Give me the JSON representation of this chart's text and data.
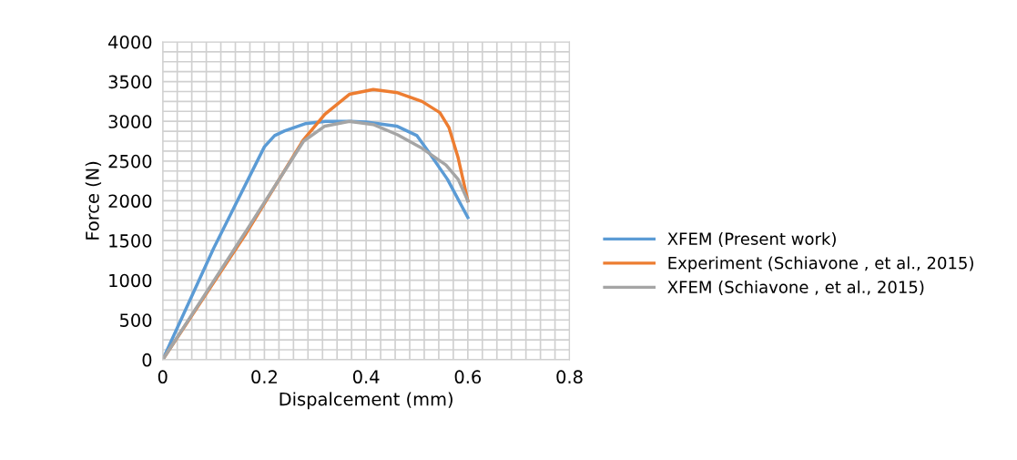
{
  "chart_data": {
    "type": "line",
    "xlabel": "Dispalcement (mm)",
    "ylabel": "Force (N)",
    "xlim": [
      0,
      0.8
    ],
    "xticks": [
      0,
      0.2,
      0.4,
      0.6,
      0.8
    ],
    "ylim": [
      0,
      4000
    ],
    "yticks": [
      0,
      500,
      1000,
      1500,
      2000,
      2500,
      3000,
      3500,
      4000
    ],
    "grid": true,
    "legend": "right",
    "marker": "none",
    "line_style": "solid",
    "series": [
      {
        "name": "XFEM (Present work)",
        "color": "#5b9bd5",
        "x": [
          0,
          0.1,
          0.2,
          0.22,
          0.24,
          0.28,
          0.32,
          0.37,
          0.4,
          0.46,
          0.5,
          0.52,
          0.56,
          0.6
        ],
        "values": [
          0,
          1400,
          2680,
          2820,
          2880,
          2970,
          3000,
          3000,
          2990,
          2940,
          2820,
          2640,
          2270,
          1790
        ]
      },
      {
        "name": "Experiment (Schiavone , et al., 2015)",
        "color": "#ed7d31",
        "x": [
          0,
          0.164,
          0.277,
          0.319,
          0.367,
          0.414,
          0.462,
          0.51,
          0.545,
          0.563,
          0.581,
          0.6
        ],
        "values": [
          0,
          1590,
          2770,
          3090,
          3340,
          3400,
          3360,
          3250,
          3110,
          2920,
          2540,
          2000
        ]
      },
      {
        "name": "XFEM (Schiavone , et al., 2015)",
        "color": "#a5a5a5",
        "x": [
          0,
          0.164,
          0.277,
          0.319,
          0.367,
          0.414,
          0.462,
          0.51,
          0.557,
          0.581,
          0.6
        ],
        "values": [
          0,
          1620,
          2750,
          2940,
          3000,
          2960,
          2830,
          2660,
          2450,
          2270,
          2000
        ]
      }
    ]
  }
}
